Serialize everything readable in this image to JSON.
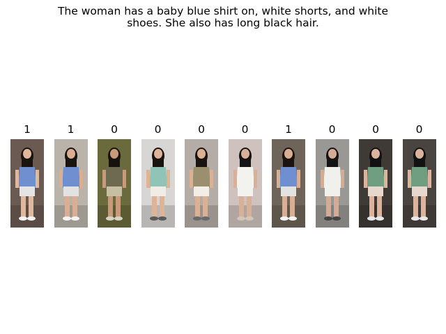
{
  "caption": {
    "line1": "The woman has a baby blue shirt on, white shorts, and white",
    "line2": "shoes. She also has long black hair."
  },
  "gallery": [
    {
      "label": "1",
      "bg": "#6b5a52",
      "top": "#6f8fd0",
      "bottom": "#e4e4e4",
      "hair": "#1a1410",
      "skin": "#e0b89c",
      "shoe": "#f4f4f4"
    },
    {
      "label": "1",
      "bg": "#b9b3aa",
      "top": "#6f8fd0",
      "bottom": "#e2e2e2",
      "hair": "#1a1410",
      "skin": "#d9ae92",
      "shoe": "#f4f4f4"
    },
    {
      "label": "0",
      "bg": "#6b6a3c",
      "top": "#6e6a52",
      "bottom": "#c7bfa4",
      "hair": "#16120e",
      "skin": "#c89a7a",
      "shoe": "#d8d2c0"
    },
    {
      "label": "0",
      "bg": "#d8d6d4",
      "top": "#8fc4b6",
      "bottom": "#f0ece6",
      "hair": "#1a1410",
      "skin": "#dfb496",
      "shoe": "#5a5a5a"
    },
    {
      "label": "0",
      "bg": "#b4aca6",
      "top": "#9a8f6e",
      "bottom": "#f2ede6",
      "hair": "#1a1410",
      "skin": "#dcb092",
      "shoe": "#6a6a6a"
    },
    {
      "label": "0",
      "bg": "#cfc2be",
      "top": "#f2f2ee",
      "bottom": "#f2f2ee",
      "hair": "#141414",
      "skin": "#d8b098",
      "shoe": "#d0c8b6"
    },
    {
      "label": "1",
      "bg": "#6f6459",
      "top": "#6f8fd0",
      "bottom": "#e2e2e2",
      "hair": "#1a1410",
      "skin": "#d9ae92",
      "shoe": "#f4f4f4"
    },
    {
      "label": "0",
      "bg": "#9a9894",
      "top": "#f0f0ec",
      "bottom": "#f0f0ec",
      "hair": "#141414",
      "skin": "#d4ab94",
      "shoe": "#444444"
    },
    {
      "label": "0",
      "bg": "#3f3a36",
      "top": "#6f9e80",
      "bottom": "#e6d8cc",
      "hair": "#121212",
      "skin": "#dcb49e",
      "shoe": "#e8e8e8"
    },
    {
      "label": "0",
      "bg": "#4a4440",
      "top": "#6f9e80",
      "bottom": "#e6d8cc",
      "hair": "#121212",
      "skin": "#dcb49e",
      "shoe": "#e8e8e8"
    }
  ]
}
